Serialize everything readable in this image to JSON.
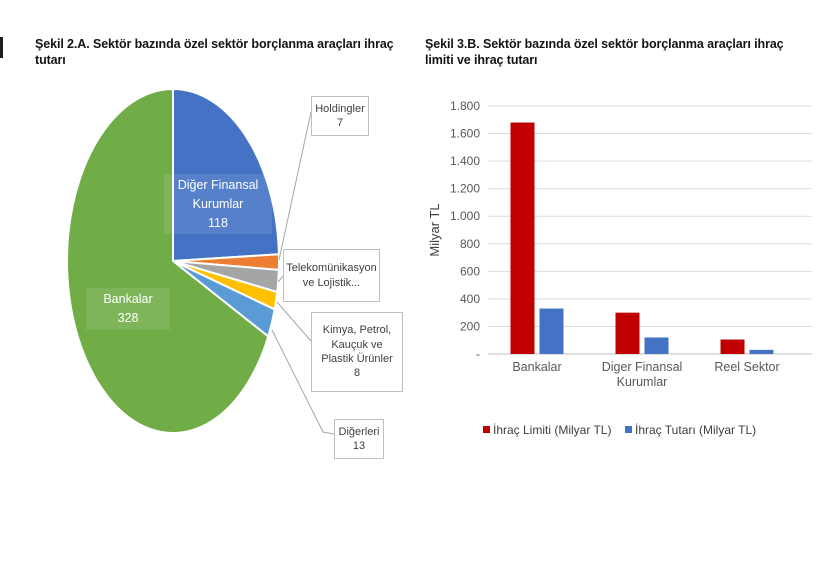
{
  "figures": {
    "left": {
      "title_lines": [
        "Şekil 2.A. Sektör bazında özel sektör borçlanma araçları ihraç",
        "tutarı"
      ]
    },
    "right": {
      "title_lines": [
        "Şekil 3.B. Sektör bazında özel sektör borçlanma araçları ihraç",
        "limiti ve ihraç tutarı"
      ]
    }
  },
  "chart_data": [
    {
      "type": "pie",
      "title": "Şekil 2.A. Sektör bazında özel sektör borçlanma araçları ihraç tutarı",
      "legend_position": "none",
      "slices": [
        {
          "label": "Diğer Finansal Kurumlar",
          "value": 118,
          "color": "#4472C4",
          "label_placement": "inside"
        },
        {
          "label": "Holdingler",
          "value": 7,
          "color": "#ED7D31",
          "label_placement": "callout"
        },
        {
          "label": "Telekomünikasyon ve Lojistik...",
          "value": null,
          "color": "#A5A5A5",
          "label_placement": "callout"
        },
        {
          "label": "Kimya, Petrol, Kauçuk ve Plastik Ürünler",
          "value": 8,
          "color": "#FFC000",
          "label_placement": "callout"
        },
        {
          "label": "Diğerleri",
          "value": 13,
          "color": "#5B9BD5",
          "label_placement": "callout"
        },
        {
          "label": "Bankalar",
          "value": 328,
          "color": "#70AD47",
          "label_placement": "inside"
        }
      ]
    },
    {
      "type": "bar",
      "title": "Şekil 3.B. Sektör bazında özel sektör borçlanma araçları ihraç limiti ve ihraç tutarı",
      "categories": [
        "Bankalar",
        "Diger Finansal Kurumlar",
        "Reel Sektor"
      ],
      "series": [
        {
          "name": "İhraç Limiti (Milyar TL)",
          "color": "#C00000",
          "values": [
            1680,
            300,
            105
          ]
        },
        {
          "name": "İhraç Tutarı (Milyar TL)",
          "color": "#4472C4",
          "values": [
            330,
            120,
            30
          ]
        }
      ],
      "xlabel": "",
      "ylabel": "Milyar TL",
      "ylim": [
        0,
        1800
      ],
      "ytick_step": 200,
      "ytick_labels": [
        "1.800",
        "1.600",
        "1.400",
        "1.200",
        "1.000",
        "800",
        "600",
        "400",
        "200",
        "-"
      ],
      "grid": true,
      "legend_position": "bottom"
    }
  ],
  "colors": {
    "grid_line": "#dcdcdc",
    "axis_line": "#c2c2c2",
    "tick_text": "#595959",
    "legend_text": "#404040",
    "leader_line": "#a6a6a6"
  }
}
